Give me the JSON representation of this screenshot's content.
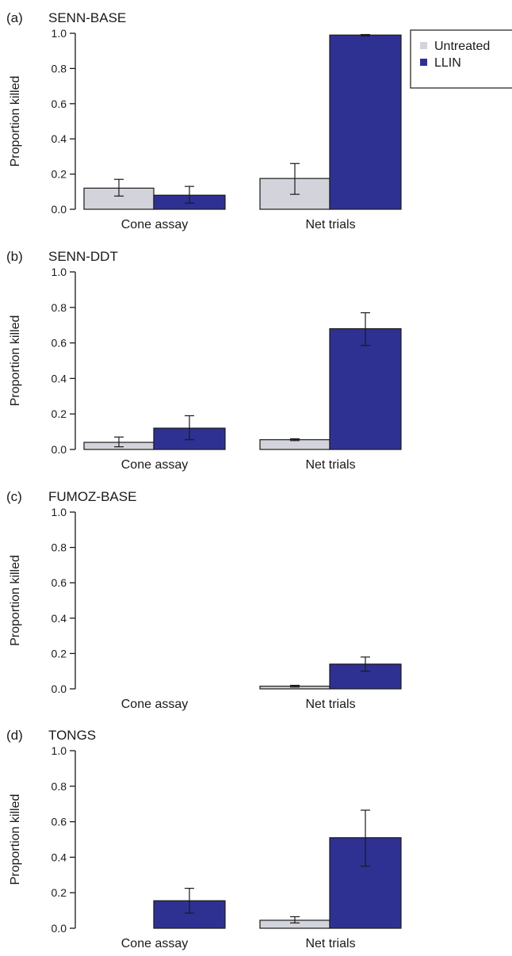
{
  "legend": {
    "items": [
      {
        "label": "Untreated",
        "color": "#d3d4db"
      },
      {
        "label": "LLIN",
        "color": "#2e3192"
      }
    ]
  },
  "chart_data": [
    {
      "type": "bar",
      "panel_label": "(a)",
      "title": "SENN-BASE",
      "ylabel": "Proportion killed",
      "categories": [
        "Cone assay",
        "Net trials"
      ],
      "ylim": [
        0,
        1
      ],
      "yticks": [
        "0.0",
        "0.2",
        "0.4",
        "0.6",
        "0.8",
        "1.0"
      ],
      "series": [
        {
          "name": "Untreated",
          "values": [
            0.12,
            0.175
          ],
          "err_low": [
            0.075,
            0.085
          ],
          "err_high": [
            0.17,
            0.26
          ]
        },
        {
          "name": "LLIN",
          "values": [
            0.08,
            0.99
          ],
          "err_low": [
            0.035,
            0.985
          ],
          "err_high": [
            0.13,
            0.993
          ]
        }
      ]
    },
    {
      "type": "bar",
      "panel_label": "(b)",
      "title": "SENN-DDT",
      "ylabel": "Proportion killed",
      "categories": [
        "Cone assay",
        "Net trials"
      ],
      "ylim": [
        0,
        1
      ],
      "yticks": [
        "0.0",
        "0.2",
        "0.4",
        "0.6",
        "0.8",
        "1.0"
      ],
      "series": [
        {
          "name": "Untreated",
          "values": [
            0.04,
            0.055
          ],
          "err_low": [
            0.015,
            0.05
          ],
          "err_high": [
            0.07,
            0.06
          ]
        },
        {
          "name": "LLIN",
          "values": [
            0.12,
            0.68
          ],
          "err_low": [
            0.055,
            0.585
          ],
          "err_high": [
            0.19,
            0.77
          ]
        }
      ]
    },
    {
      "type": "bar",
      "panel_label": "(c)",
      "title": "FUMOZ-BASE",
      "ylabel": "Proportion killed",
      "categories": [
        "Cone assay",
        "Net trials"
      ],
      "ylim": [
        0,
        1
      ],
      "yticks": [
        "0.0",
        "0.2",
        "0.4",
        "0.6",
        "0.8",
        "1.0"
      ],
      "series": [
        {
          "name": "Untreated",
          "values": [
            0.0,
            0.015
          ],
          "err_low": [
            0.0,
            0.01
          ],
          "err_high": [
            0.0,
            0.02
          ]
        },
        {
          "name": "LLIN",
          "values": [
            0.0,
            0.14
          ],
          "err_low": [
            0.0,
            0.1
          ],
          "err_high": [
            0.0,
            0.18
          ]
        }
      ]
    },
    {
      "type": "bar",
      "panel_label": "(d)",
      "title": "TONGS",
      "ylabel": "Proportion killed",
      "categories": [
        "Cone assay",
        "Net trials"
      ],
      "ylim": [
        0,
        1
      ],
      "yticks": [
        "0.0",
        "0.2",
        "0.4",
        "0.6",
        "0.8",
        "1.0"
      ],
      "series": [
        {
          "name": "Untreated",
          "values": [
            0.0,
            0.045
          ],
          "err_low": [
            0.0,
            0.03
          ],
          "err_high": [
            0.0,
            0.065
          ]
        },
        {
          "name": "LLIN",
          "values": [
            0.155,
            0.51
          ],
          "err_low": [
            0.085,
            0.35
          ],
          "err_high": [
            0.225,
            0.665
          ]
        }
      ]
    }
  ]
}
